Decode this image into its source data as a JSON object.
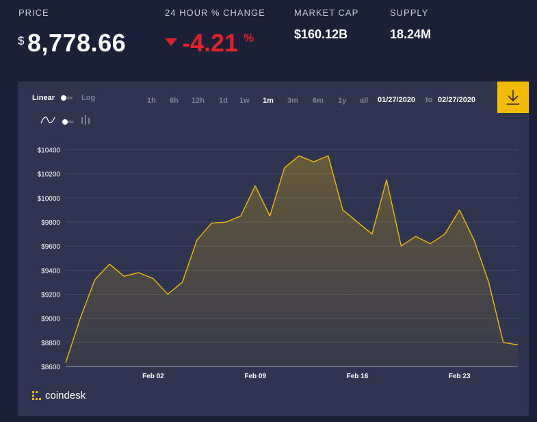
{
  "header": {
    "price_label": "PRICE",
    "price_symbol": "$",
    "price_value": "8,778.66",
    "change_label": "24 HOUR % CHANGE",
    "change_value": "-4.21",
    "change_symbol": "%",
    "market_cap_label": "MARKET CAP",
    "market_cap_value": "$160.12B",
    "supply_label": "SUPPLY",
    "supply_value": "18.24M",
    "change_color": "#e5202a"
  },
  "controls": {
    "linear_label": "Linear",
    "log_label": "Log",
    "ranges": [
      "1h",
      "6h",
      "12h",
      "1d",
      "1w",
      "1m",
      "3m",
      "6m",
      "1y",
      "all"
    ],
    "active_range": "1m",
    "date_from": "01/27/2020",
    "date_to_label": "to",
    "date_to": "02/27/2020",
    "line_chart_icon": "line-wave-icon",
    "bar_chart_icon": "candlestick-icon",
    "download_icon": "download-icon",
    "accent": "#f5bb00"
  },
  "brand": {
    "name": "coindesk",
    "logo_icon": "coindesk-logo-icon"
  },
  "chart_data": {
    "type": "area",
    "x_start": "2020-01-27",
    "x_end": "2020-02-27",
    "x_ticks": [
      "Feb 02",
      "Feb 09",
      "Feb 16",
      "Feb 23"
    ],
    "y_ticks": [
      "$8600",
      "$8800",
      "$9000",
      "$9200",
      "$9400",
      "$9600",
      "$9800",
      "$10000",
      "$10200",
      "$10400"
    ],
    "ylim": [
      8600,
      10500
    ],
    "grid": true,
    "line_color": "#f5bb00",
    "x": [
      "2020-01-27",
      "2020-01-28",
      "2020-01-29",
      "2020-01-30",
      "2020-01-31",
      "2020-02-01",
      "2020-02-02",
      "2020-02-03",
      "2020-02-04",
      "2020-02-05",
      "2020-02-06",
      "2020-02-07",
      "2020-02-08",
      "2020-02-09",
      "2020-02-10",
      "2020-02-11",
      "2020-02-12",
      "2020-02-13",
      "2020-02-14",
      "2020-02-15",
      "2020-02-16",
      "2020-02-17",
      "2020-02-18",
      "2020-02-19",
      "2020-02-20",
      "2020-02-21",
      "2020-02-22",
      "2020-02-23",
      "2020-02-24",
      "2020-02-25",
      "2020-02-26",
      "2020-02-27"
    ],
    "values": [
      8630,
      9000,
      9320,
      9450,
      9350,
      9380,
      9330,
      9200,
      9300,
      9650,
      9790,
      9800,
      9850,
      10100,
      9850,
      10250,
      10350,
      10300,
      10350,
      9900,
      9800,
      9700,
      10150,
      9600,
      9680,
      9620,
      9700,
      9900,
      9650,
      9300,
      8800,
      8780
    ]
  }
}
